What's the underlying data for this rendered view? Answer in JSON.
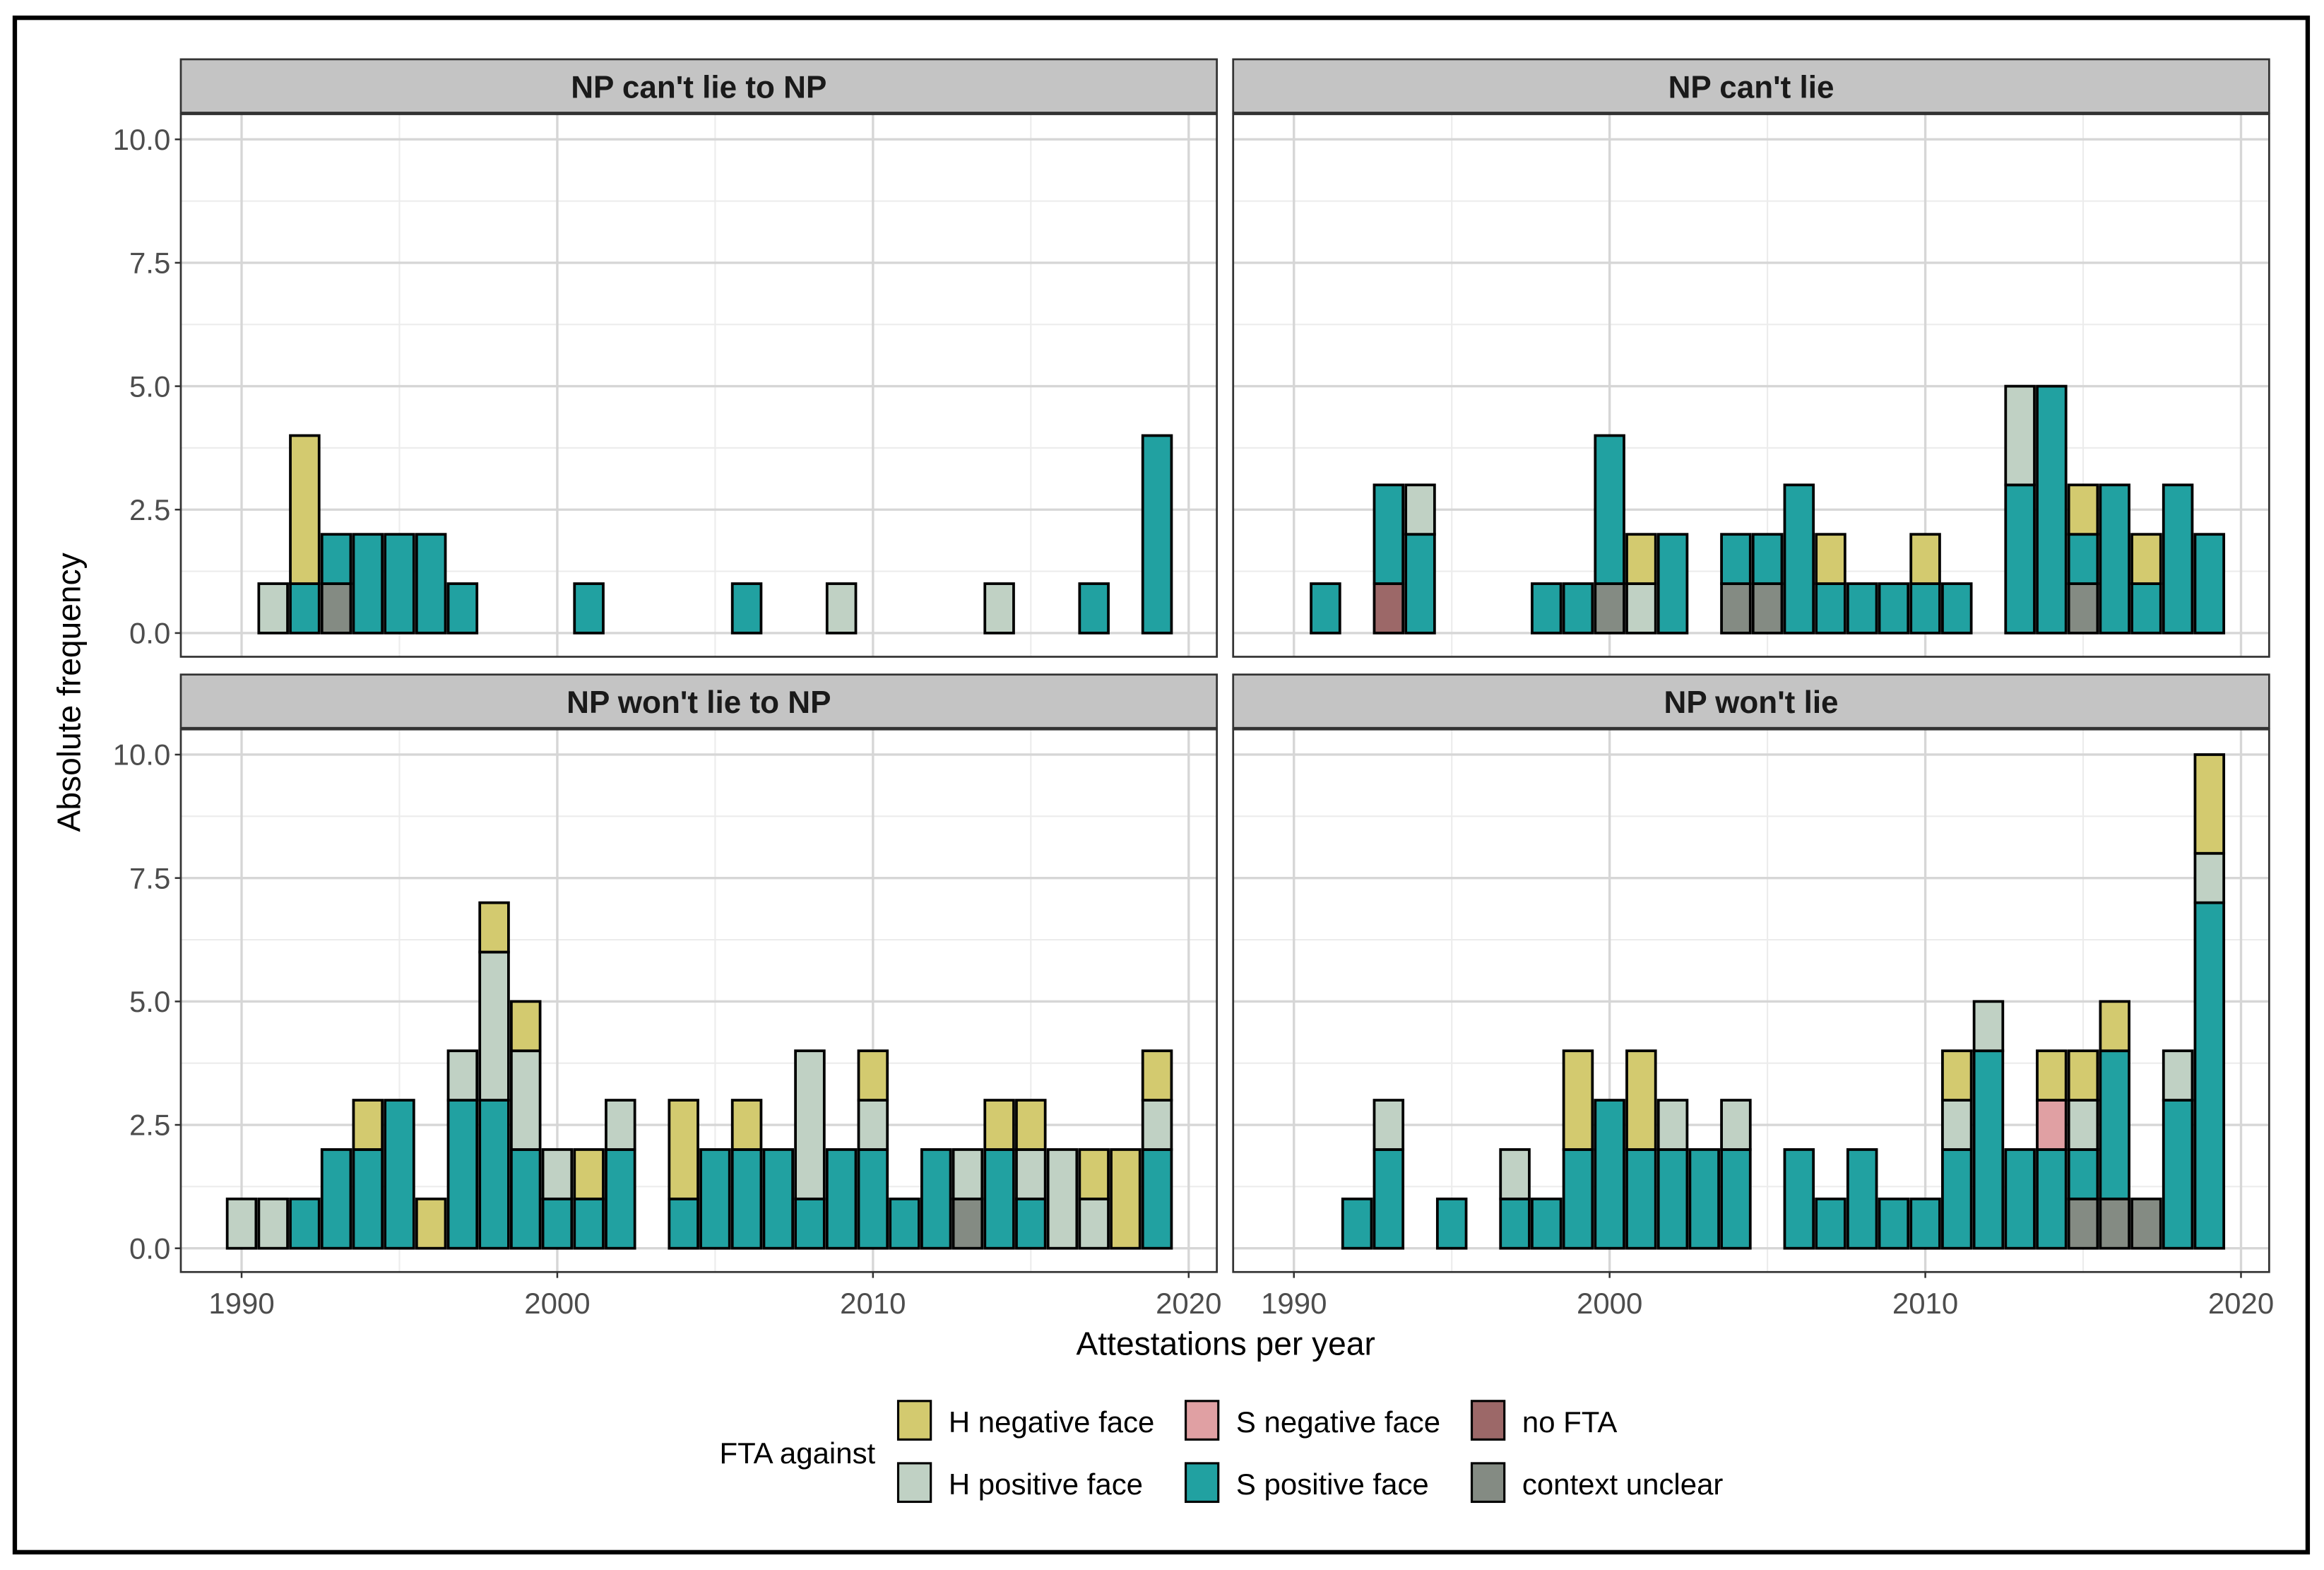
{
  "chart_data": {
    "type": "bar",
    "stacked": true,
    "xlabel": "Attestations per year",
    "ylabel": "Absolute frequency",
    "xlim": [
      1988,
      2021
    ],
    "ylim": [
      0,
      10
    ],
    "x_ticks": [
      "1990",
      "2000",
      "2010",
      "2020"
    ],
    "y_ticks": [
      "0.0",
      "2.5",
      "5.0",
      "7.5",
      "10.0"
    ],
    "grid": true,
    "legend": {
      "title": "FTA against",
      "position": "bottom",
      "entries": [
        {
          "label": "H negative face",
          "color": "#D3CA6F"
        },
        {
          "label": "H positive face",
          "color": "#C0D1C4"
        },
        {
          "label": "S negative face",
          "color": "#E0A0A3"
        },
        {
          "label": "S positive face",
          "color": "#21A1A1"
        },
        {
          "label": "no FTA",
          "color": "#9C6868"
        },
        {
          "label": "context unclear",
          "color": "#848B83"
        }
      ]
    },
    "stack_order_bottom_to_top": [
      "context unclear",
      "no FTA",
      "S positive face",
      "S negative face",
      "H positive face",
      "H negative face"
    ],
    "facets": [
      {
        "title": "NP can't lie to NP",
        "bars": [
          {
            "year": 1991,
            "H positive face": 1
          },
          {
            "year": 1992,
            "S positive face": 1,
            "H negative face": 3
          },
          {
            "year": 1993,
            "context unclear": 1,
            "S positive face": 1
          },
          {
            "year": 1994,
            "S positive face": 2
          },
          {
            "year": 1995,
            "S positive face": 2
          },
          {
            "year": 1996,
            "S positive face": 2
          },
          {
            "year": 1997,
            "S positive face": 1
          },
          {
            "year": 2001,
            "S positive face": 1
          },
          {
            "year": 2006,
            "S positive face": 1
          },
          {
            "year": 2009,
            "H positive face": 1
          },
          {
            "year": 2014,
            "H positive face": 1
          },
          {
            "year": 2017,
            "S positive face": 1
          },
          {
            "year": 2019,
            "S positive face": 4
          }
        ]
      },
      {
        "title": "NP can't lie",
        "bars": [
          {
            "year": 1991,
            "S positive face": 1
          },
          {
            "year": 1993,
            "no FTA": 1,
            "S positive face": 2
          },
          {
            "year": 1994,
            "S positive face": 2,
            "H positive face": 1
          },
          {
            "year": 1998,
            "S positive face": 1
          },
          {
            "year": 1999,
            "S positive face": 1
          },
          {
            "year": 2000,
            "context unclear": 1,
            "S positive face": 3
          },
          {
            "year": 2001,
            "H positive face": 1,
            "H negative face": 1
          },
          {
            "year": 2002,
            "S positive face": 2
          },
          {
            "year": 2004,
            "context unclear": 1,
            "S positive face": 1
          },
          {
            "year": 2005,
            "context unclear": 1,
            "S positive face": 1
          },
          {
            "year": 2006,
            "S positive face": 3
          },
          {
            "year": 2007,
            "S positive face": 1,
            "H negative face": 1
          },
          {
            "year": 2008,
            "S positive face": 1
          },
          {
            "year": 2009,
            "S positive face": 1
          },
          {
            "year": 2010,
            "S positive face": 1,
            "H negative face": 1
          },
          {
            "year": 2011,
            "S positive face": 1
          },
          {
            "year": 2013,
            "S positive face": 3,
            "H positive face": 2
          },
          {
            "year": 2014,
            "S positive face": 5
          },
          {
            "year": 2015,
            "context unclear": 1,
            "S positive face": 1,
            "H negative face": 1
          },
          {
            "year": 2016,
            "S positive face": 3
          },
          {
            "year": 2017,
            "S positive face": 1,
            "H negative face": 1
          },
          {
            "year": 2018,
            "S positive face": 3
          },
          {
            "year": 2019,
            "S positive face": 2
          }
        ]
      },
      {
        "title": "NP won't lie to NP",
        "bars": [
          {
            "year": 1990,
            "H positive face": 1
          },
          {
            "year": 1991,
            "H positive face": 1
          },
          {
            "year": 1992,
            "S positive face": 1
          },
          {
            "year": 1993,
            "S positive face": 2
          },
          {
            "year": 1994,
            "S positive face": 2,
            "H negative face": 1
          },
          {
            "year": 1995,
            "S positive face": 3
          },
          {
            "year": 1996,
            "H negative face": 1
          },
          {
            "year": 1997,
            "S positive face": 3,
            "H positive face": 1
          },
          {
            "year": 1998,
            "S positive face": 3,
            "H positive face": 3,
            "H negative face": 1
          },
          {
            "year": 1999,
            "S positive face": 2,
            "H positive face": 2,
            "H negative face": 1
          },
          {
            "year": 2000,
            "S positive face": 1,
            "H positive face": 1
          },
          {
            "year": 2001,
            "S positive face": 1,
            "H negative face": 1
          },
          {
            "year": 2002,
            "S positive face": 2,
            "H positive face": 1
          },
          {
            "year": 2004,
            "S positive face": 1,
            "H negative face": 2
          },
          {
            "year": 2005,
            "S positive face": 2
          },
          {
            "year": 2006,
            "S positive face": 2,
            "H negative face": 1
          },
          {
            "year": 2007,
            "S positive face": 2
          },
          {
            "year": 2008,
            "S positive face": 1,
            "H positive face": 3
          },
          {
            "year": 2009,
            "S positive face": 2
          },
          {
            "year": 2010,
            "S positive face": 2,
            "H positive face": 1,
            "H negative face": 1
          },
          {
            "year": 2011,
            "S positive face": 1
          },
          {
            "year": 2012,
            "S positive face": 2
          },
          {
            "year": 2013,
            "context unclear": 1,
            "H positive face": 1
          },
          {
            "year": 2014,
            "S positive face": 2,
            "H negative face": 1
          },
          {
            "year": 2015,
            "S positive face": 1,
            "H positive face": 1,
            "H negative face": 1
          },
          {
            "year": 2016,
            "H positive face": 2
          },
          {
            "year": 2017,
            "H positive face": 1,
            "H negative face": 1
          },
          {
            "year": 2018,
            "H negative face": 2
          },
          {
            "year": 2019,
            "S positive face": 2,
            "H positive face": 1,
            "H negative face": 1
          }
        ]
      },
      {
        "title": "NP won't lie",
        "bars": [
          {
            "year": 1992,
            "S positive face": 1
          },
          {
            "year": 1993,
            "S positive face": 2,
            "H positive face": 1
          },
          {
            "year": 1995,
            "S positive face": 1
          },
          {
            "year": 1997,
            "S positive face": 1,
            "H positive face": 1
          },
          {
            "year": 1998,
            "S positive face": 1
          },
          {
            "year": 1999,
            "S positive face": 2,
            "H negative face": 2
          },
          {
            "year": 2000,
            "S positive face": 3
          },
          {
            "year": 2001,
            "S positive face": 2,
            "H negative face": 2
          },
          {
            "year": 2002,
            "S positive face": 2,
            "H positive face": 1
          },
          {
            "year": 2003,
            "S positive face": 2
          },
          {
            "year": 2004,
            "S positive face": 2,
            "H positive face": 1
          },
          {
            "year": 2006,
            "S positive face": 2
          },
          {
            "year": 2007,
            "S positive face": 1
          },
          {
            "year": 2008,
            "S positive face": 2
          },
          {
            "year": 2009,
            "S positive face": 1
          },
          {
            "year": 2010,
            "S positive face": 1
          },
          {
            "year": 2011,
            "S positive face": 2,
            "H positive face": 1,
            "H negative face": 1
          },
          {
            "year": 2012,
            "S positive face": 4,
            "H positive face": 1
          },
          {
            "year": 2013,
            "S positive face": 2
          },
          {
            "year": 2014,
            "S positive face": 2,
            "S negative face": 1,
            "H negative face": 1
          },
          {
            "year": 2015,
            "context unclear": 1,
            "S positive face": 1,
            "H positive face": 1,
            "H negative face": 1
          },
          {
            "year": 2016,
            "context unclear": 1,
            "S positive face": 3,
            "H negative face": 1
          },
          {
            "year": 2017,
            "context unclear": 1
          },
          {
            "year": 2018,
            "S positive face": 3,
            "H positive face": 1
          },
          {
            "year": 2019,
            "S positive face": 7,
            "H positive face": 1,
            "H negative face": 2
          }
        ]
      }
    ]
  }
}
